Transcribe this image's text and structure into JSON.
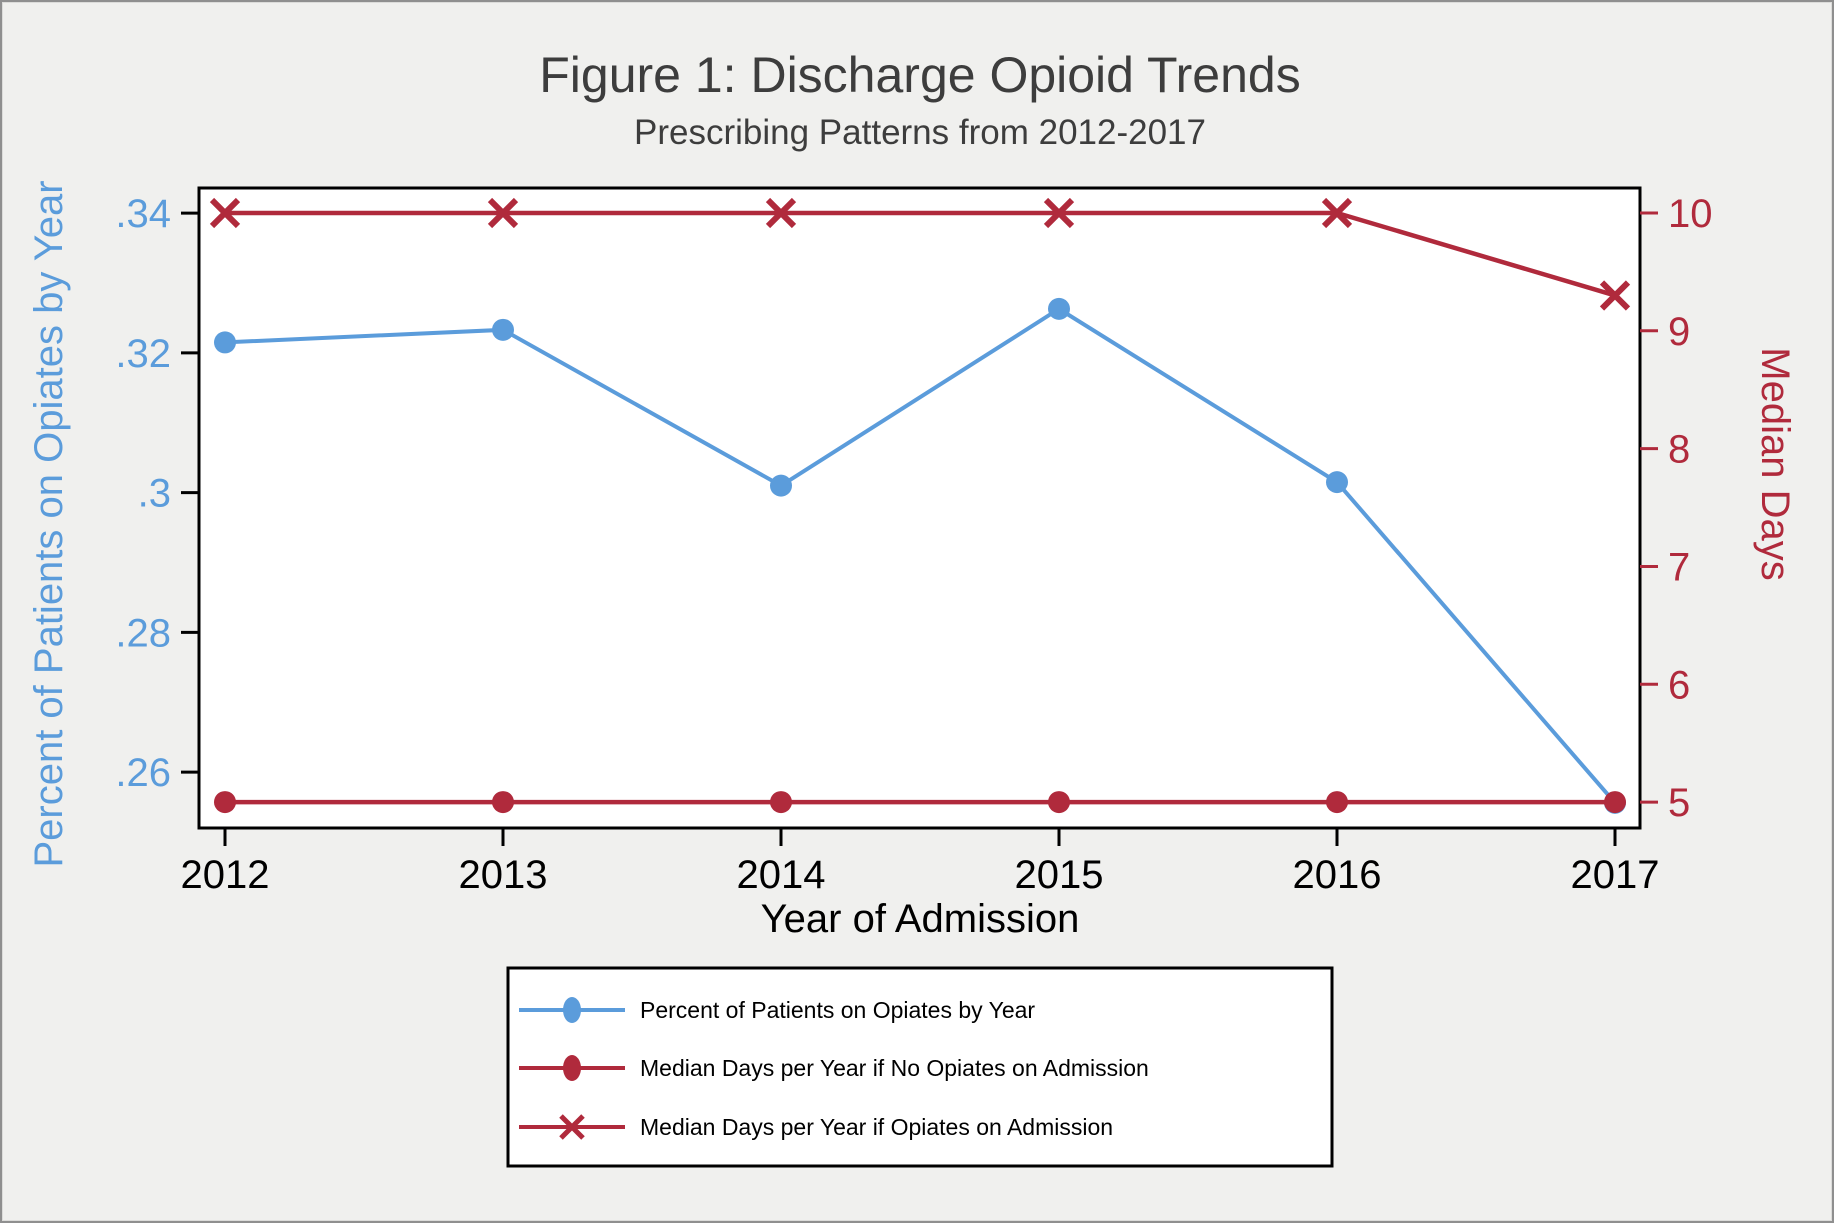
{
  "figure": {
    "title": "Figure 1: Discharge Opioid Trends",
    "subtitle": "Prescribing Patterns from 2012-2017"
  },
  "colors": {
    "blue": "#5B9CDB",
    "red": "#B02A3C",
    "title_gray": "#3D3D3D",
    "black": "#000000",
    "background": "#F0F0EE",
    "plot_background": "#FFFFFF",
    "legend_background": "#FFFFFF",
    "legend_border": "#000000"
  },
  "chart_data": {
    "type": "line",
    "x": [
      2012,
      2013,
      2014,
      2015,
      2016,
      2017
    ],
    "xlabel": "Year of Admission",
    "grid": false,
    "legend_position": "bottom",
    "left_axis": {
      "title": "Percent of Patients on Opiates by Year",
      "tick_labels": [
        ".26",
        ".28",
        ".3",
        ".32",
        ".34"
      ],
      "tick_values": [
        0.26,
        0.28,
        0.3,
        0.32,
        0.34
      ],
      "range": [
        0.252,
        0.3436
      ]
    },
    "right_axis": {
      "title": "Median Days",
      "tick_labels": [
        "5",
        "6",
        "7",
        "8",
        "9",
        "10"
      ],
      "tick_values": [
        5,
        6,
        7,
        8,
        9,
        10
      ],
      "range": [
        4.78,
        10.212
      ]
    },
    "series": [
      {
        "name": "Percent of Patients on Opiates by Year",
        "axis": "left",
        "color_key": "blue",
        "marker": "circle",
        "values": [
          0.3215,
          0.3233,
          0.301,
          0.3263,
          0.3015,
          0.2556
        ]
      },
      {
        "name": "Median Days per Year if No Opiates on Admission",
        "axis": "right",
        "color_key": "red",
        "marker": "circle",
        "values": [
          5,
          5,
          5,
          5,
          5,
          5
        ]
      },
      {
        "name": "Median Days per Year if Opiates on Admission",
        "axis": "right",
        "color_key": "red",
        "marker": "x",
        "values": [
          10,
          10,
          10,
          10,
          10,
          9.3
        ]
      }
    ]
  }
}
